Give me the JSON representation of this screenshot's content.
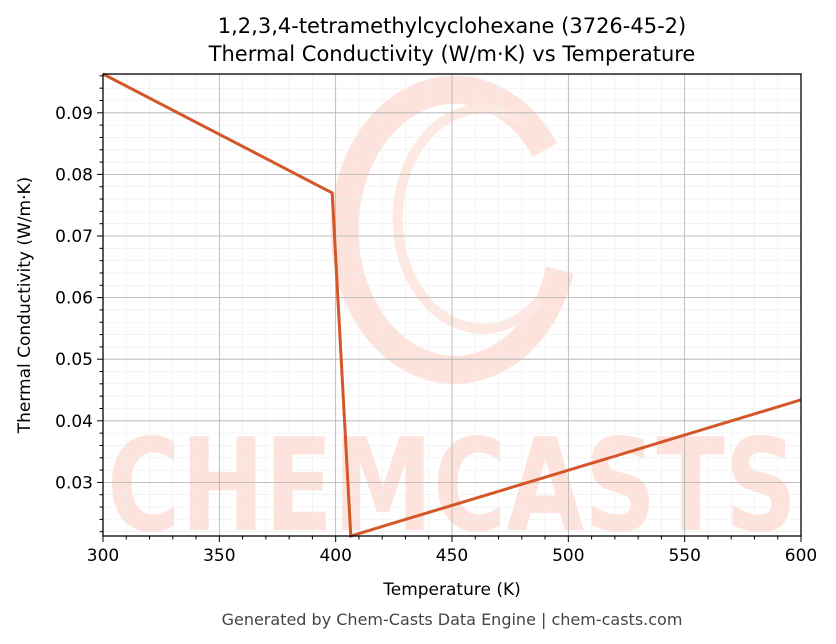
{
  "chart_data": {
    "type": "line",
    "title_lines": [
      "1,2,3,4-tetramethylcyclohexane (3726-45-2)",
      "Thermal Conductivity (W/m·K) vs Temperature"
    ],
    "xlabel": "Temperature (K)",
    "ylabel": "Thermal Conductivity (W/m·K)",
    "xlim": [
      300,
      600
    ],
    "ylim": [
      0.0213,
      0.0963
    ],
    "x_ticks": [
      300,
      350,
      400,
      450,
      500,
      550,
      600
    ],
    "y_ticks": [
      0.03,
      0.04,
      0.05,
      0.06,
      0.07,
      0.08,
      0.09
    ],
    "x_tick_labels": [
      "300",
      "350",
      "400",
      "450",
      "500",
      "550",
      "600"
    ],
    "y_tick_labels": [
      "0.03",
      "0.04",
      "0.05",
      "0.06",
      "0.07",
      "0.08",
      "0.09"
    ],
    "grid": true,
    "series": [
      {
        "color": "#d4572a",
        "x": [
          300,
          398.5,
          406.5,
          600
        ],
        "y": [
          0.0963,
          0.077,
          0.0213,
          0.0434
        ]
      }
    ]
  },
  "watermark": {
    "text": "CHEMCASTS",
    "color": "#fde3dc"
  },
  "footer": "Generated by Chem-Casts Data Engine | chem-casts.com"
}
